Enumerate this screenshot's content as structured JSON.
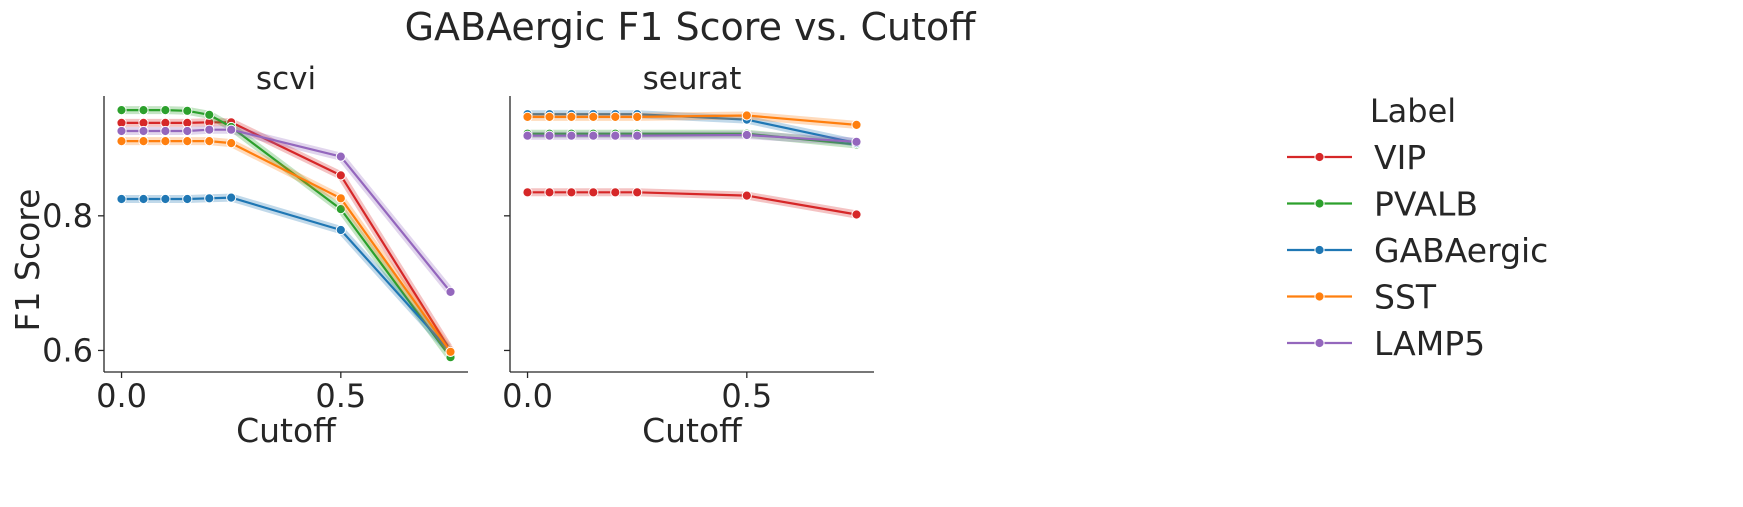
{
  "chart_data": {
    "type": "line",
    "title": "GABAergic F1 Score vs. Cutoff",
    "xlabel": "Cutoff",
    "ylabel": "F1 Score",
    "x": [
      0.0,
      0.05,
      0.1,
      0.15,
      0.2,
      0.25,
      0.5,
      0.75
    ],
    "xlim": [
      -0.04,
      0.79
    ],
    "ylim": [
      0.568,
      0.978
    ],
    "xticks": [
      0.0,
      0.5
    ],
    "xtick_labels": [
      "0.0",
      "0.5"
    ],
    "yticks": [
      0.6,
      0.8
    ],
    "ytick_labels": [
      "0.6",
      "0.8"
    ],
    "grid": false,
    "legend": {
      "title": "Label",
      "placement": "right"
    },
    "panels": [
      {
        "title": "scvi",
        "series": [
          {
            "name": "VIP",
            "color": "#d62728",
            "values": [
              0.938,
              0.938,
              0.938,
              0.938,
              0.939,
              0.939,
              0.86,
              0.6
            ]
          },
          {
            "name": "PVALB",
            "color": "#2ca02c",
            "values": [
              0.957,
              0.957,
              0.957,
              0.956,
              0.95,
              0.932,
              0.81,
              0.59
            ]
          },
          {
            "name": "GABAergic",
            "color": "#1f77b4",
            "values": [
              0.825,
              0.825,
              0.825,
              0.825,
              0.826,
              0.827,
              0.779,
              0.598
            ]
          },
          {
            "name": "SST",
            "color": "#ff7f0e",
            "values": [
              0.911,
              0.911,
              0.911,
              0.911,
              0.911,
              0.908,
              0.826,
              0.598
            ]
          },
          {
            "name": "LAMP5",
            "color": "#9467bd",
            "values": [
              0.926,
              0.926,
              0.926,
              0.926,
              0.928,
              0.928,
              0.888,
              0.687
            ]
          }
        ]
      },
      {
        "title": "seurat",
        "series": [
          {
            "name": "VIP",
            "color": "#d62728",
            "values": [
              0.835,
              0.835,
              0.835,
              0.835,
              0.835,
              0.835,
              0.83,
              0.802
            ]
          },
          {
            "name": "PVALB",
            "color": "#2ca02c",
            "values": [
              0.922,
              0.922,
              0.922,
              0.922,
              0.922,
              0.922,
              0.922,
              0.906
            ]
          },
          {
            "name": "GABAergic",
            "color": "#1f77b4",
            "values": [
              0.951,
              0.951,
              0.951,
              0.951,
              0.951,
              0.951,
              0.943,
              0.908
            ]
          },
          {
            "name": "SST",
            "color": "#ff7f0e",
            "values": [
              0.947,
              0.947,
              0.947,
              0.947,
              0.947,
              0.947,
              0.949,
              0.935
            ]
          },
          {
            "name": "LAMP5",
            "color": "#9467bd",
            "values": [
              0.919,
              0.919,
              0.919,
              0.919,
              0.919,
              0.919,
              0.92,
              0.91
            ]
          }
        ]
      }
    ]
  }
}
